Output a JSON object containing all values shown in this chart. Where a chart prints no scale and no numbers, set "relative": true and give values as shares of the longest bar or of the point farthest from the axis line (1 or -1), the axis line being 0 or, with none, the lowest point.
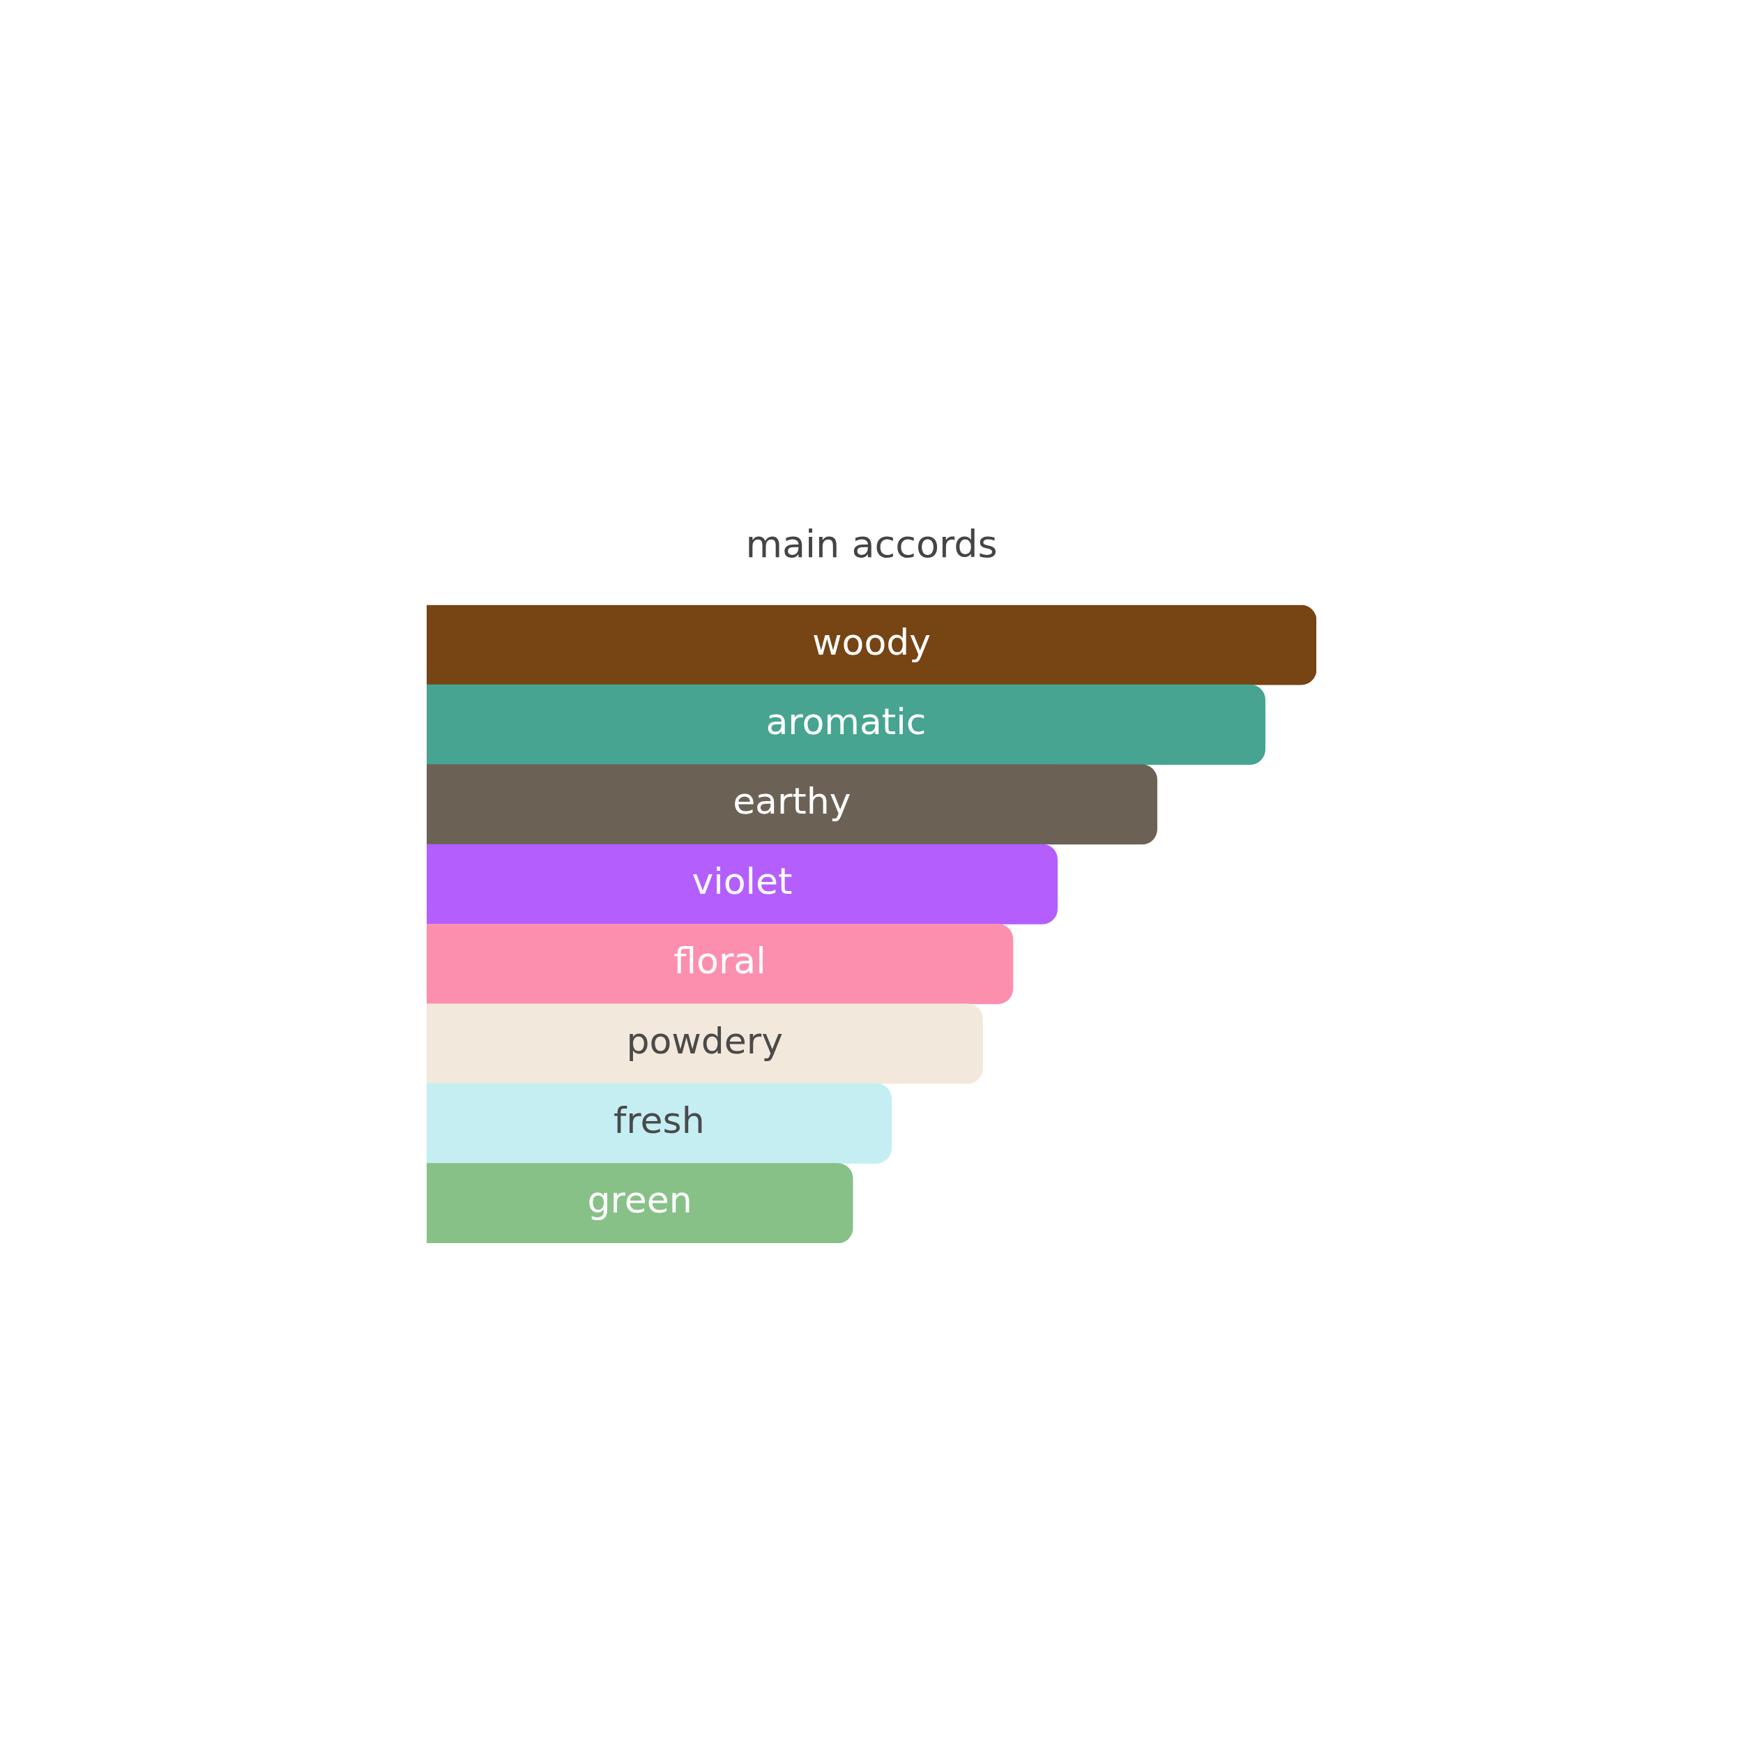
{
  "chart_data": {
    "type": "bar",
    "orientation": "horizontal",
    "relative": true,
    "title": "main accords",
    "categories": [
      "woody",
      "aromatic",
      "earthy",
      "violet",
      "floral",
      "powdery",
      "fresh",
      "green"
    ],
    "values": [
      1,
      0.9425,
      0.821,
      0.709,
      0.659,
      0.625,
      0.5225,
      0.479
    ],
    "colors": [
      "#774414",
      "#46a491",
      "#6b6255",
      "#b45ffd",
      "#fd8fae",
      "#f2e8dc",
      "#c5eef3",
      "#87c187"
    ],
    "legend": false
  }
}
